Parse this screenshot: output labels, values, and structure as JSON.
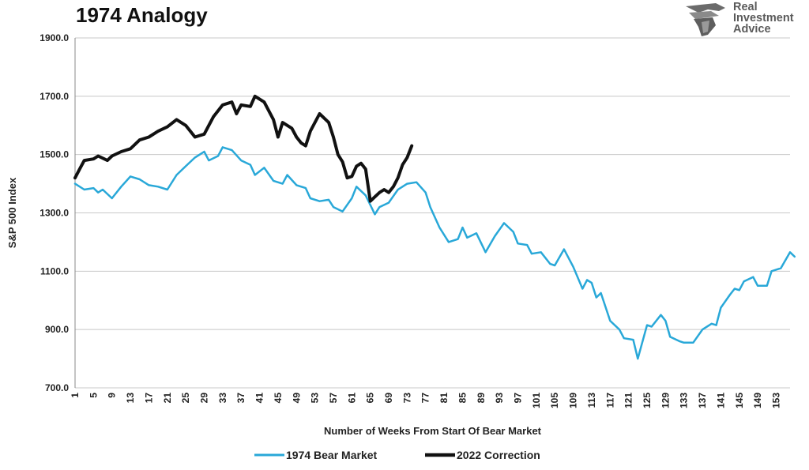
{
  "chart_data": {
    "type": "line",
    "title": "1974 Analogy",
    "xlabel": "Number of Weeks From Start Of Bear Market",
    "ylabel": "S&P 500 Index",
    "ylim": [
      700,
      1900
    ],
    "xlim": [
      1,
      156
    ],
    "y_ticks": [
      "1900.0",
      "1700.0",
      "1500.0",
      "1300.0",
      "1100.0",
      "900.0",
      "700.0"
    ],
    "x_ticks": [
      "1",
      "5",
      "9",
      "13",
      "17",
      "21",
      "25",
      "29",
      "33",
      "37",
      "41",
      "45",
      "49",
      "53",
      "57",
      "61",
      "65",
      "69",
      "73",
      "77",
      "81",
      "85",
      "89",
      "93",
      "97",
      "101",
      "105",
      "109",
      "113",
      "117",
      "121",
      "125",
      "129",
      "133",
      "137",
      "141",
      "145",
      "149",
      "153"
    ],
    "grid": "horizontal",
    "legend_position": "bottom",
    "series": [
      {
        "name": "1974 Bear Market",
        "color": "#29a8d8",
        "points": [
          [
            1,
            1400
          ],
          [
            3,
            1380
          ],
          [
            5,
            1385
          ],
          [
            6,
            1370
          ],
          [
            7,
            1380
          ],
          [
            9,
            1350
          ],
          [
            11,
            1390
          ],
          [
            13,
            1425
          ],
          [
            15,
            1415
          ],
          [
            17,
            1395
          ],
          [
            19,
            1390
          ],
          [
            21,
            1380
          ],
          [
            23,
            1430
          ],
          [
            25,
            1460
          ],
          [
            27,
            1490
          ],
          [
            29,
            1510
          ],
          [
            30,
            1480
          ],
          [
            32,
            1495
          ],
          [
            33,
            1525
          ],
          [
            35,
            1515
          ],
          [
            37,
            1480
          ],
          [
            39,
            1465
          ],
          [
            40,
            1430
          ],
          [
            42,
            1455
          ],
          [
            44,
            1410
          ],
          [
            46,
            1400
          ],
          [
            47,
            1430
          ],
          [
            49,
            1395
          ],
          [
            51,
            1385
          ],
          [
            52,
            1350
          ],
          [
            54,
            1340
          ],
          [
            56,
            1345
          ],
          [
            57,
            1320
          ],
          [
            59,
            1305
          ],
          [
            61,
            1350
          ],
          [
            62,
            1390
          ],
          [
            64,
            1360
          ],
          [
            66,
            1295
          ],
          [
            67,
            1320
          ],
          [
            69,
            1335
          ],
          [
            71,
            1380
          ],
          [
            73,
            1400
          ],
          [
            75,
            1405
          ],
          [
            77,
            1370
          ],
          [
            78,
            1320
          ],
          [
            80,
            1250
          ],
          [
            82,
            1200
          ],
          [
            84,
            1210
          ],
          [
            85,
            1250
          ],
          [
            86,
            1215
          ],
          [
            88,
            1230
          ],
          [
            90,
            1165
          ],
          [
            92,
            1220
          ],
          [
            94,
            1265
          ],
          [
            96,
            1235
          ],
          [
            97,
            1195
          ],
          [
            99,
            1190
          ],
          [
            100,
            1160
          ],
          [
            102,
            1165
          ],
          [
            104,
            1125
          ],
          [
            105,
            1120
          ],
          [
            107,
            1175
          ],
          [
            109,
            1115
          ],
          [
            111,
            1040
          ],
          [
            112,
            1070
          ],
          [
            113,
            1060
          ],
          [
            114,
            1010
          ],
          [
            115,
            1025
          ],
          [
            117,
            930
          ],
          [
            119,
            900
          ],
          [
            120,
            870
          ],
          [
            122,
            865
          ],
          [
            123,
            800
          ],
          [
            125,
            915
          ],
          [
            126,
            910
          ],
          [
            128,
            950
          ],
          [
            129,
            930
          ],
          [
            130,
            875
          ],
          [
            132,
            860
          ],
          [
            133,
            855
          ],
          [
            135,
            855
          ],
          [
            137,
            900
          ],
          [
            139,
            920
          ],
          [
            140,
            915
          ],
          [
            141,
            975
          ],
          [
            143,
            1020
          ],
          [
            144,
            1040
          ],
          [
            145,
            1035
          ],
          [
            146,
            1065
          ],
          [
            148,
            1080
          ],
          [
            149,
            1050
          ],
          [
            151,
            1050
          ],
          [
            152,
            1100
          ],
          [
            154,
            1110
          ],
          [
            156,
            1165
          ],
          [
            157,
            1150
          ]
        ]
      },
      {
        "name": "2022 Correction",
        "color": "#111111",
        "points": [
          [
            1,
            1420
          ],
          [
            2,
            1450
          ],
          [
            3,
            1480
          ],
          [
            5,
            1485
          ],
          [
            6,
            1495
          ],
          [
            8,
            1480
          ],
          [
            9,
            1495
          ],
          [
            11,
            1510
          ],
          [
            13,
            1520
          ],
          [
            15,
            1550
          ],
          [
            17,
            1560
          ],
          [
            19,
            1580
          ],
          [
            21,
            1595
          ],
          [
            23,
            1620
          ],
          [
            25,
            1600
          ],
          [
            27,
            1560
          ],
          [
            29,
            1570
          ],
          [
            30,
            1600
          ],
          [
            31,
            1630
          ],
          [
            33,
            1670
          ],
          [
            35,
            1680
          ],
          [
            36,
            1640
          ],
          [
            37,
            1670
          ],
          [
            39,
            1665
          ],
          [
            40,
            1700
          ],
          [
            42,
            1680
          ],
          [
            44,
            1620
          ],
          [
            45,
            1560
          ],
          [
            46,
            1610
          ],
          [
            48,
            1590
          ],
          [
            49,
            1560
          ],
          [
            50,
            1540
          ],
          [
            51,
            1530
          ],
          [
            52,
            1580
          ],
          [
            54,
            1640
          ],
          [
            56,
            1610
          ],
          [
            57,
            1560
          ],
          [
            58,
            1500
          ],
          [
            59,
            1475
          ],
          [
            60,
            1420
          ],
          [
            61,
            1425
          ],
          [
            62,
            1460
          ],
          [
            63,
            1470
          ],
          [
            64,
            1450
          ],
          [
            65,
            1340
          ],
          [
            66,
            1355
          ],
          [
            67,
            1370
          ],
          [
            68,
            1380
          ],
          [
            69,
            1370
          ],
          [
            70,
            1390
          ],
          [
            71,
            1420
          ],
          [
            72,
            1465
          ],
          [
            73,
            1490
          ],
          [
            74,
            1530
          ]
        ]
      }
    ]
  },
  "logo": {
    "lines": [
      "Real",
      "Investment",
      "Advice"
    ]
  }
}
